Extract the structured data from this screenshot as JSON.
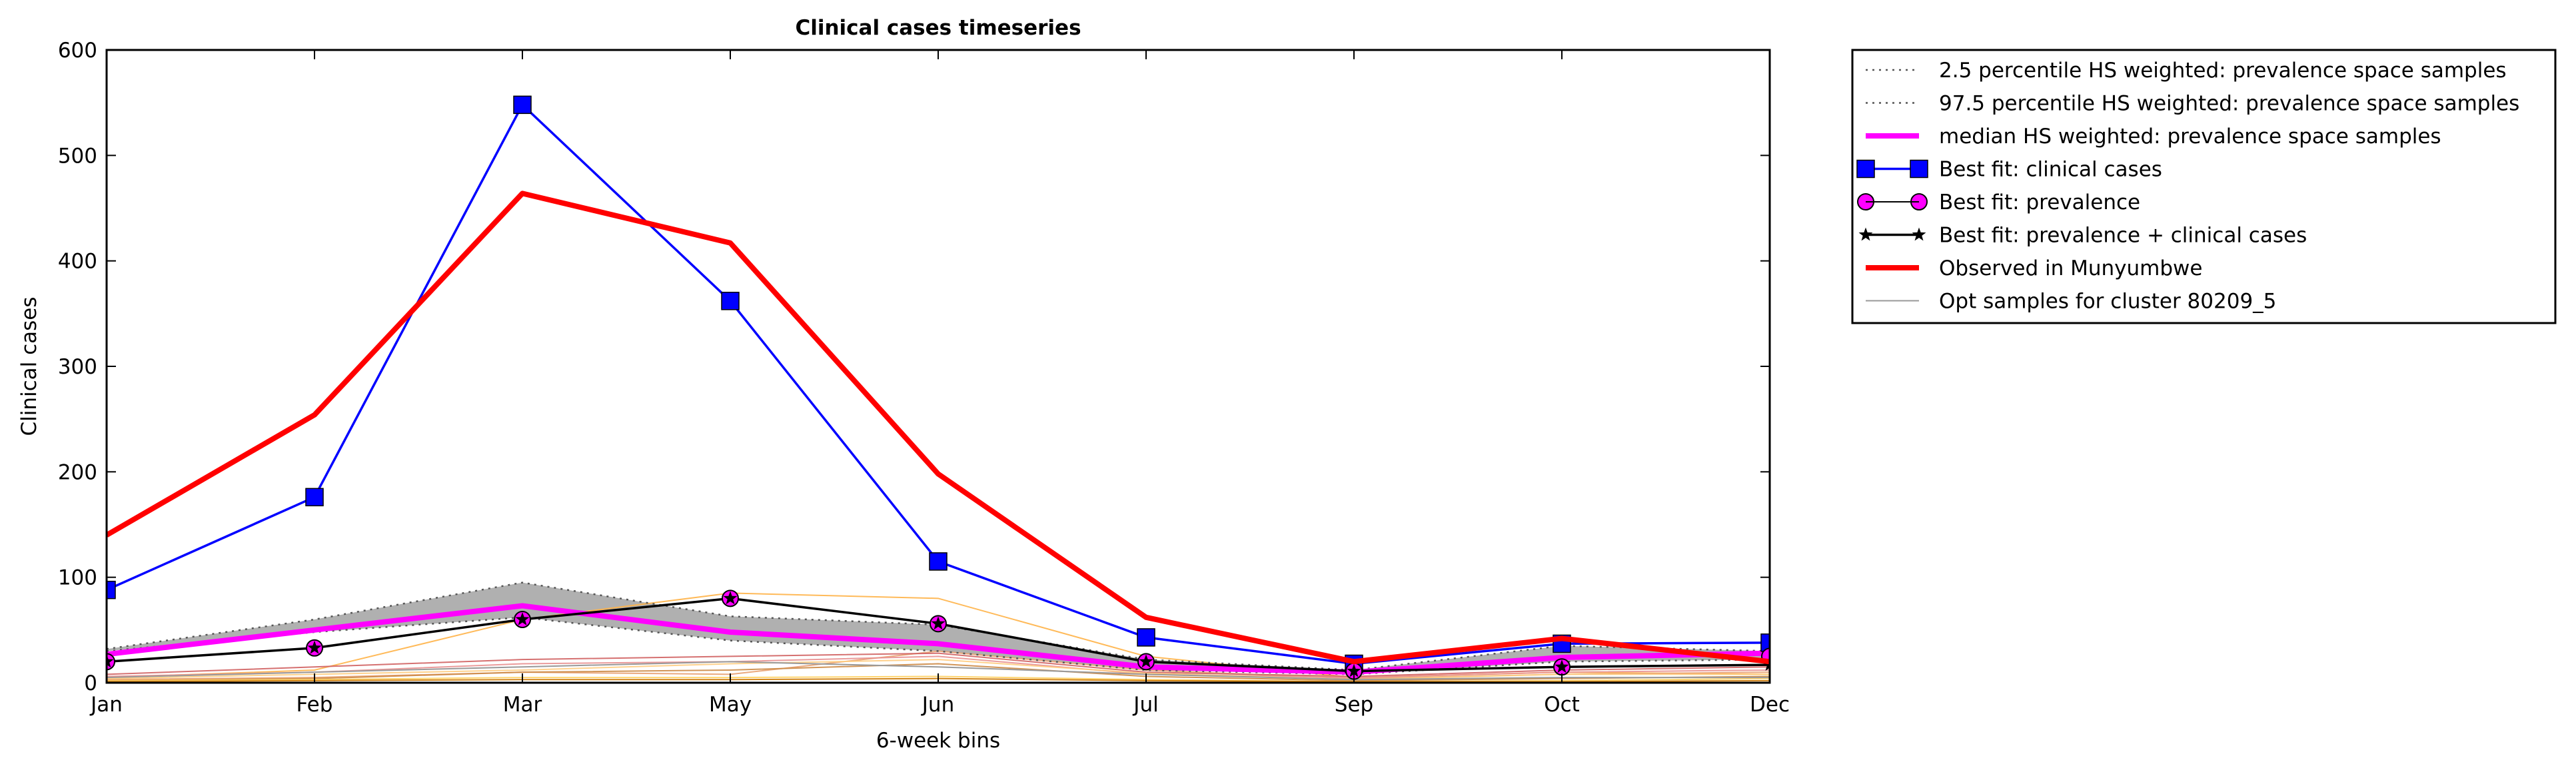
{
  "chart_data": {
    "type": "line",
    "title": "Clinical cases timeseries",
    "xlabel": "6-week bins",
    "ylabel": "Clinical cases",
    "categories": [
      "Jan",
      "Feb",
      "Mar",
      "May",
      "Jun",
      "Jul",
      "Sep",
      "Oct",
      "Dec"
    ],
    "ylim": [
      0,
      600
    ],
    "yticks": [
      0,
      100,
      200,
      300,
      400,
      500,
      600
    ],
    "grid": false,
    "legend_position": "outside-right",
    "band": {
      "lower": [
        30,
        48,
        62,
        40,
        30,
        12,
        8,
        20,
        22
      ],
      "upper": [
        32,
        60,
        95,
        63,
        55,
        22,
        12,
        35,
        30
      ],
      "fill_color": "#b0b0b0"
    },
    "series": [
      {
        "name": "2.5 percentile HS weighted: prevalence space samples",
        "style": "dotted",
        "color": "#555555",
        "values": [
          30,
          48,
          62,
          40,
          30,
          12,
          8,
          20,
          22
        ]
      },
      {
        "name": "97.5 percentile HS weighted: prevalence space samples",
        "style": "dotted",
        "color": "#555555",
        "values": [
          32,
          60,
          95,
          63,
          55,
          22,
          12,
          35,
          30
        ]
      },
      {
        "name": "median HS weighted: prevalence space samples",
        "style": "solid",
        "color": "#ff00ff",
        "values": [
          27,
          50,
          73,
          48,
          37,
          15,
          10,
          24,
          28
        ]
      },
      {
        "name": "Best fit: clinical cases",
        "style": "solid",
        "color": "#0000ff",
        "marker": "square",
        "values": [
          88,
          176,
          548,
          362,
          115,
          43,
          18,
          37,
          38
        ]
      },
      {
        "name": "Best fit: prevalence",
        "style": "none",
        "color": "#ff00ff",
        "marker": "circle",
        "values": [
          20,
          33,
          60,
          80,
          56,
          20,
          11,
          15,
          25
        ]
      },
      {
        "name": "Best fit: prevalence + clinical cases",
        "style": "solid",
        "color": "#000000",
        "marker": "star",
        "values": [
          20,
          33,
          60,
          80,
          56,
          20,
          11,
          15,
          17
        ]
      },
      {
        "name": "Observed in Munyumbwe",
        "style": "solid",
        "color": "#ff0000",
        "values": [
          140,
          254,
          464,
          417,
          198,
          62,
          20,
          42,
          20
        ]
      },
      {
        "name": "Opt samples for cluster 80209_5",
        "style": "solid",
        "color": "#999999",
        "values": [
          5,
          10,
          15,
          20,
          15,
          8,
          3,
          5,
          5
        ]
      }
    ],
    "sample_lines": [
      {
        "color": "#ffb347",
        "values": [
          5,
          12,
          60,
          85,
          80,
          25,
          5,
          10,
          8
        ]
      },
      {
        "color": "#e8a070",
        "values": [
          3,
          5,
          10,
          8,
          30,
          12,
          4,
          8,
          10
        ]
      },
      {
        "color": "#d06060",
        "values": [
          8,
          15,
          22,
          25,
          28,
          10,
          6,
          12,
          15
        ]
      },
      {
        "color": "#e89090",
        "values": [
          6,
          10,
          18,
          20,
          25,
          8,
          5,
          10,
          12
        ]
      },
      {
        "color": "#ffcc80",
        "values": [
          4,
          8,
          12,
          18,
          22,
          9,
          3,
          8,
          8
        ]
      },
      {
        "color": "#cc8844",
        "values": [
          2,
          4,
          10,
          12,
          18,
          6,
          2,
          4,
          6
        ]
      },
      {
        "color": "#ffd060",
        "values": [
          2,
          3,
          5,
          5,
          6,
          3,
          1,
          2,
          4
        ]
      },
      {
        "color": "#cc7700",
        "values": [
          1,
          2,
          3,
          3,
          4,
          2,
          1,
          1,
          2
        ]
      }
    ]
  }
}
